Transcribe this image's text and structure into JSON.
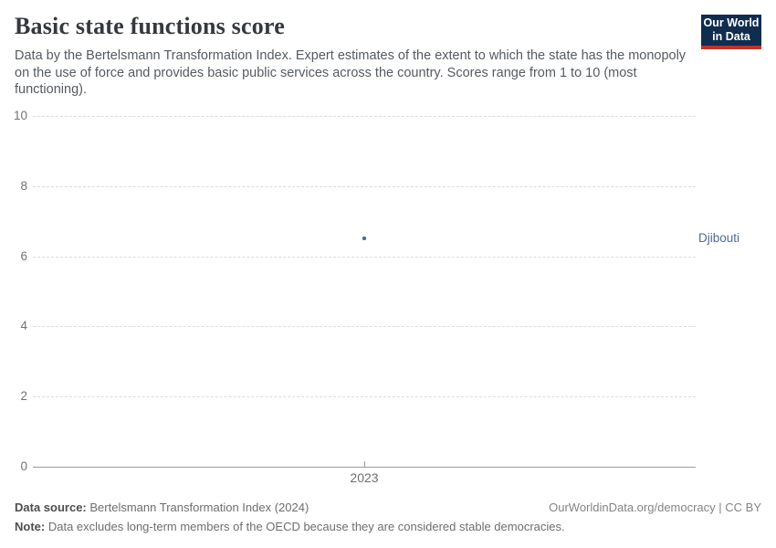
{
  "header": {
    "title": "Basic state functions score",
    "subtitle": "Data by the Bertelsmann Transformation Index. Expert estimates of the extent to which the state has the monopoly on the use of force and provides basic public services across the country. Scores range from 1 to 10 (most functioning).",
    "logo": {
      "line1": "Our World",
      "line2": "in Data"
    }
  },
  "chart_data": {
    "type": "scatter",
    "title": "Basic state functions score",
    "categories": [
      "2023"
    ],
    "series": [
      {
        "name": "Djibouti",
        "values": [
          6.5
        ]
      }
    ],
    "xlabel": "",
    "ylabel": "",
    "ylim": [
      0,
      10
    ],
    "yticks": [
      0,
      2,
      4,
      6,
      8,
      10
    ],
    "grid": "horizontal-dashed",
    "legend": "entity-label-right",
    "point_color": "#4c6a9c",
    "label_color": "#4c6a9c"
  },
  "footer": {
    "source_label": "Data source:",
    "source_value": "Bertelsmann Transformation Index (2024)",
    "attribution": "OurWorldinData.org/democracy | CC BY",
    "note_label": "Note:",
    "note_value": "Data excludes long-term members of the OECD because they are considered stable democracies."
  },
  "colors": {
    "accent_blue": "#4c6a9c",
    "logo_navy": "#102d50",
    "logo_red": "#c0322e",
    "gridline": "#dcdcdc",
    "axis": "#9a9a9a",
    "tick_text": "#737373"
  }
}
